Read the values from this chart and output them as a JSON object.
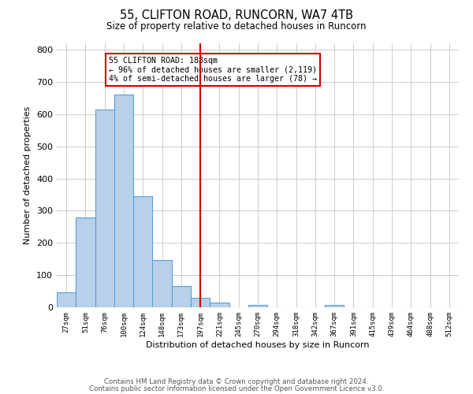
{
  "title": "55, CLIFTON ROAD, RUNCORN, WA7 4TB",
  "subtitle": "Size of property relative to detached houses in Runcorn",
  "xlabel": "Distribution of detached houses by size in Runcorn",
  "ylabel": "Number of detached properties",
  "bin_labels": [
    "27sqm",
    "51sqm",
    "76sqm",
    "100sqm",
    "124sqm",
    "148sqm",
    "173sqm",
    "197sqm",
    "221sqm",
    "245sqm",
    "270sqm",
    "294sqm",
    "318sqm",
    "342sqm",
    "367sqm",
    "391sqm",
    "415sqm",
    "439sqm",
    "464sqm",
    "488sqm",
    "512sqm"
  ],
  "bar_values": [
    46,
    278,
    614,
    660,
    345,
    148,
    65,
    30,
    15,
    0,
    8,
    0,
    0,
    0,
    7,
    0,
    0,
    0,
    0,
    0,
    0
  ],
  "bar_color": "#b8d0e8",
  "bar_edge_color": "#5a9fd4",
  "property_line_x": 7,
  "annotation_label": "55 CLIFTON ROAD: 188sqm",
  "annotation_line1": "← 96% of detached houses are smaller (2,119)",
  "annotation_line2": "4% of semi-detached houses are larger (78) →",
  "annotation_box_color": "#ffffff",
  "annotation_box_edge_color": "#cc0000",
  "vline_color": "#cc0000",
  "ylim": [
    0,
    820
  ],
  "yticks": [
    0,
    100,
    200,
    300,
    400,
    500,
    600,
    700,
    800
  ],
  "footer1": "Contains HM Land Registry data © Crown copyright and database right 2024.",
  "footer2": "Contains public sector information licensed under the Open Government Licence v3.0.",
  "background_color": "#ffffff",
  "grid_color": "#cccccc"
}
